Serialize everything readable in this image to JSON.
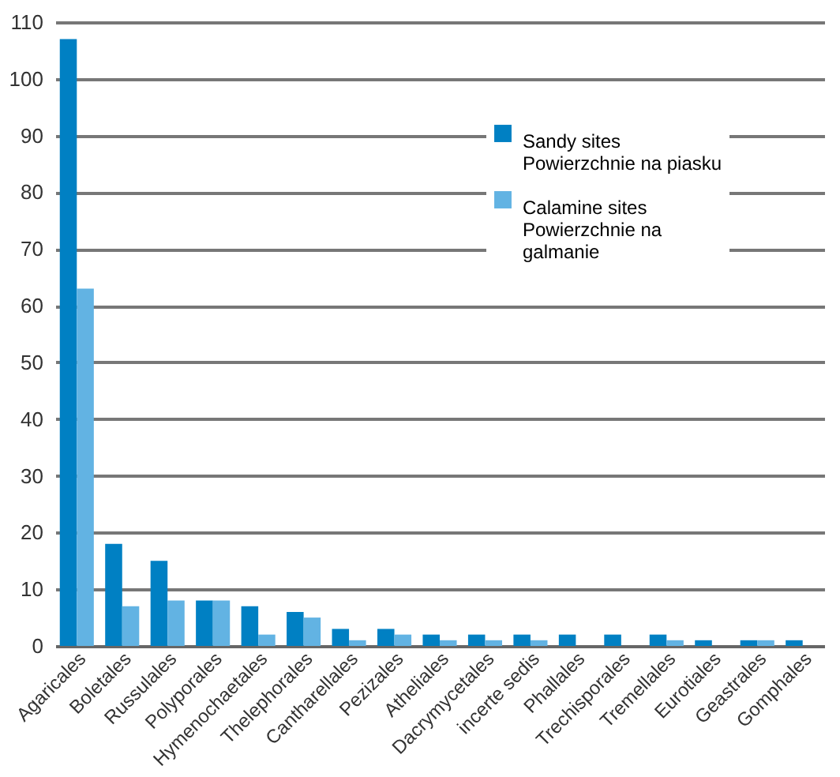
{
  "chart_data": {
    "type": "bar",
    "categories": [
      "Agaricales",
      "Boletales",
      "Russulales",
      "Polyporales",
      "Hymenochaetales",
      "Thelephorales",
      "Cantharellales",
      "Pezizales",
      "Atheliales",
      "Dacrymycetales",
      "incerte sedis",
      "Phallales",
      "Trechisporales",
      "Tremellales",
      "Eurotiales",
      "Geastrales",
      "Gomphales"
    ],
    "series": [
      {
        "name": "Sandy sites\nPowierzchnie na piasku",
        "color": "#0080c3",
        "values": [
          107,
          18,
          15,
          8,
          7,
          6,
          3,
          3,
          2,
          2,
          2,
          2,
          2,
          2,
          1,
          1,
          1
        ]
      },
      {
        "name": "Calamine sites\nPowierzchnie na\ngalmanie",
        "color": "#62b3e3",
        "values": [
          63,
          7,
          8,
          8,
          2,
          5,
          1,
          2,
          1,
          1,
          1,
          0,
          0,
          1,
          0,
          1,
          0
        ]
      }
    ],
    "ylim": [
      0,
      110
    ],
    "yticks": [
      0,
      10,
      20,
      30,
      40,
      50,
      60,
      70,
      80,
      90,
      100,
      110
    ],
    "grid": "y",
    "legend": "top right"
  }
}
